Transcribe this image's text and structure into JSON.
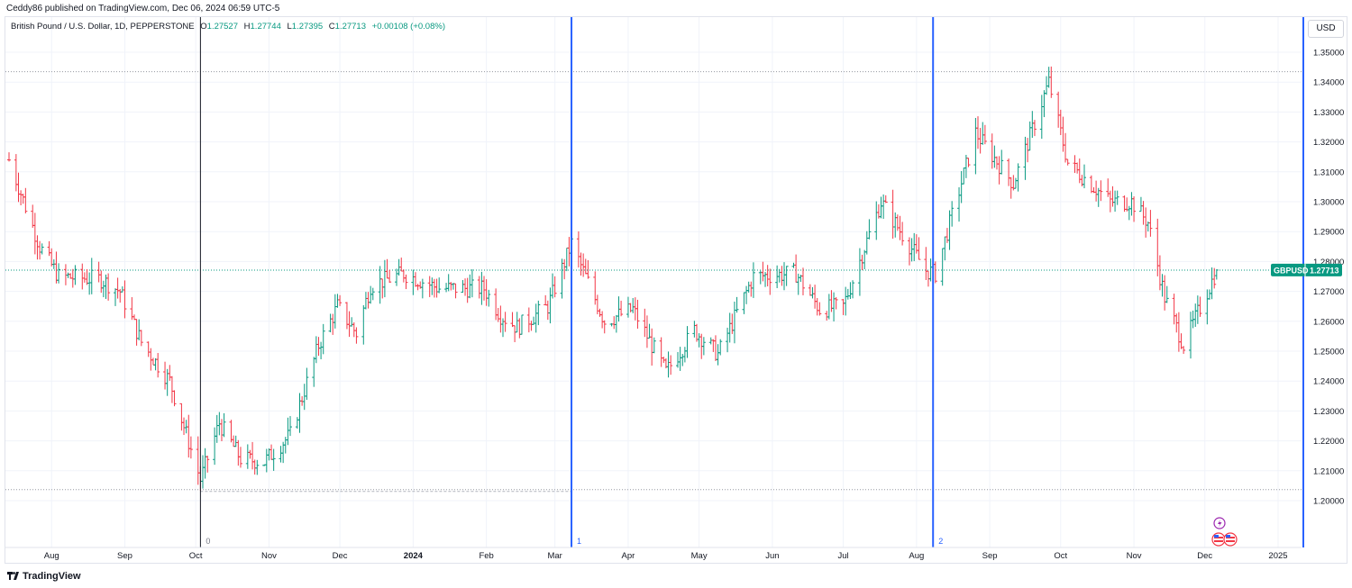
{
  "header": {
    "published": "Ceddy86 published on TradingView.com, Dec 06, 2024 06:59 UTC-5"
  },
  "legend": {
    "symbol": "British Pound / U.S. Dollar, 1D, PEPPERSTONE",
    "open_label": "O",
    "open": "1.27527",
    "high_label": "H",
    "high": "1.27744",
    "low_label": "L",
    "low": "1.27395",
    "close_label": "C",
    "close": "1.27713",
    "change": "+0.00108 (+0.08%)"
  },
  "price_scale": {
    "currency": "USD"
  },
  "price_tag": {
    "symbol": "GBPUSD",
    "value": "1.27713",
    "color": "#089981"
  },
  "footer": {
    "brand": "TradingView"
  },
  "colors": {
    "up": "#089981",
    "down": "#f23645",
    "vline": "#2962ff",
    "cursor": "#131722"
  },
  "chart_data": {
    "type": "ohlc_bar",
    "symbol": "GBPUSD",
    "timeframe": "1D",
    "ylim": [
      1.191,
      1.351
    ],
    "y_ticks": [
      "1.35000",
      "1.34000",
      "1.33000",
      "1.32000",
      "1.31000",
      "1.30000",
      "1.29000",
      "1.28000",
      "1.27000",
      "1.26000",
      "1.25000",
      "1.24000",
      "1.23000",
      "1.22000",
      "1.21000",
      "1.20000"
    ],
    "x_ticks": [
      {
        "label": "Aug",
        "bold": false
      },
      {
        "label": "Sep",
        "bold": false
      },
      {
        "label": "Oct",
        "bold": false
      },
      {
        "label": "Nov",
        "bold": false
      },
      {
        "label": "Dec",
        "bold": false
      },
      {
        "label": "2024",
        "bold": true
      },
      {
        "label": "Feb",
        "bold": false
      },
      {
        "label": "Mar",
        "bold": false
      },
      {
        "label": "Apr",
        "bold": false
      },
      {
        "label": "May",
        "bold": false
      },
      {
        "label": "Jun",
        "bold": false
      },
      {
        "label": "Jul",
        "bold": false
      },
      {
        "label": "Aug",
        "bold": false
      },
      {
        "label": "Sep",
        "bold": false
      },
      {
        "label": "Oct",
        "bold": false
      },
      {
        "label": "Nov",
        "bold": false
      },
      {
        "label": "Dec",
        "bold": false
      },
      {
        "label": "2025",
        "bold": false
      }
    ],
    "horizontal_levels": [
      1.3435,
      1.2771,
      1.2037
    ],
    "vertical_markers": [
      {
        "label": "0",
        "date": "2023-10-03"
      },
      {
        "label": "1",
        "date": "2024-03-08"
      },
      {
        "label": "2",
        "date": "2024-08-08"
      }
    ],
    "anchors": [
      {
        "date": "2023-07-14",
        "price": 1.314
      },
      {
        "date": "2023-07-27",
        "price": 1.285
      },
      {
        "date": "2023-08-04",
        "price": 1.275
      },
      {
        "date": "2023-08-22",
        "price": 1.274
      },
      {
        "date": "2023-08-30",
        "price": 1.27
      },
      {
        "date": "2023-09-08",
        "price": 1.253
      },
      {
        "date": "2023-09-20",
        "price": 1.24
      },
      {
        "date": "2023-10-03",
        "price": 1.207
      },
      {
        "date": "2023-10-11",
        "price": 1.226
      },
      {
        "date": "2023-10-20",
        "price": 1.214
      },
      {
        "date": "2023-10-30",
        "price": 1.213
      },
      {
        "date": "2023-11-10",
        "price": 1.222
      },
      {
        "date": "2023-11-22",
        "price": 1.252
      },
      {
        "date": "2023-11-30",
        "price": 1.265
      },
      {
        "date": "2023-12-08",
        "price": 1.256
      },
      {
        "date": "2023-12-14",
        "price": 1.272
      },
      {
        "date": "2023-12-28",
        "price": 1.276
      },
      {
        "date": "2024-01-12",
        "price": 1.271
      },
      {
        "date": "2024-01-31",
        "price": 1.271
      },
      {
        "date": "2024-02-07",
        "price": 1.262
      },
      {
        "date": "2024-02-14",
        "price": 1.258
      },
      {
        "date": "2024-02-27",
        "price": 1.265
      },
      {
        "date": "2024-03-08",
        "price": 1.286
      },
      {
        "date": "2024-03-22",
        "price": 1.26
      },
      {
        "date": "2024-04-03",
        "price": 1.264
      },
      {
        "date": "2024-04-17",
        "price": 1.243
      },
      {
        "date": "2024-04-29",
        "price": 1.257
      },
      {
        "date": "2024-05-09",
        "price": 1.249
      },
      {
        "date": "2024-05-24",
        "price": 1.275
      },
      {
        "date": "2024-06-11",
        "price": 1.276
      },
      {
        "date": "2024-06-21",
        "price": 1.264
      },
      {
        "date": "2024-07-01",
        "price": 1.265
      },
      {
        "date": "2024-07-17",
        "price": 1.3
      },
      {
        "date": "2024-08-05",
        "price": 1.277
      },
      {
        "date": "2024-08-09",
        "price": 1.276
      },
      {
        "date": "2024-08-26",
        "price": 1.323
      },
      {
        "date": "2024-09-11",
        "price": 1.306
      },
      {
        "date": "2024-09-26",
        "price": 1.34
      },
      {
        "date": "2024-10-04",
        "price": 1.313
      },
      {
        "date": "2024-10-22",
        "price": 1.3
      },
      {
        "date": "2024-10-31",
        "price": 1.3
      },
      {
        "date": "2024-11-07",
        "price": 1.293
      },
      {
        "date": "2024-11-14",
        "price": 1.268
      },
      {
        "date": "2024-11-22",
        "price": 1.252
      },
      {
        "date": "2024-12-06",
        "price": 1.277
      }
    ],
    "last_bar": {
      "date": "2024-12-06",
      "open": 1.27527,
      "high": 1.27744,
      "low": 1.27395,
      "close": 1.27713
    }
  }
}
